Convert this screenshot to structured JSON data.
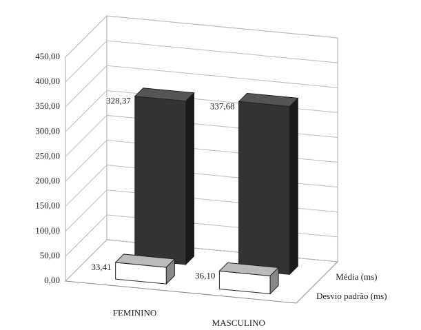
{
  "chart_data": {
    "type": "bar3d",
    "categories": [
      "FEMININO",
      "MASCULINO"
    ],
    "series": [
      {
        "name": "Média (ms)",
        "color": "#333333",
        "values": [
          328.37,
          337.68
        ],
        "value_labels": [
          "328,37",
          "337,68"
        ]
      },
      {
        "name": "Desvio padrão (ms)",
        "color": "#ffffff",
        "values": [
          33.41,
          36.1
        ],
        "value_labels": [
          "33,41",
          "36,10"
        ]
      }
    ],
    "ylim": [
      0,
      450
    ],
    "yticks": [
      {
        "value": 0,
        "label": "0,00"
      },
      {
        "value": 50,
        "label": "50,00"
      },
      {
        "value": 100,
        "label": "100,00"
      },
      {
        "value": 150,
        "label": "150,00"
      },
      {
        "value": 200,
        "label": "200,00"
      },
      {
        "value": 250,
        "label": "250,00"
      },
      {
        "value": 300,
        "label": "300,00"
      },
      {
        "value": 350,
        "label": "350,00"
      },
      {
        "value": 400,
        "label": "400,00"
      },
      {
        "value": 450,
        "label": "450,00"
      }
    ],
    "grid": true
  }
}
